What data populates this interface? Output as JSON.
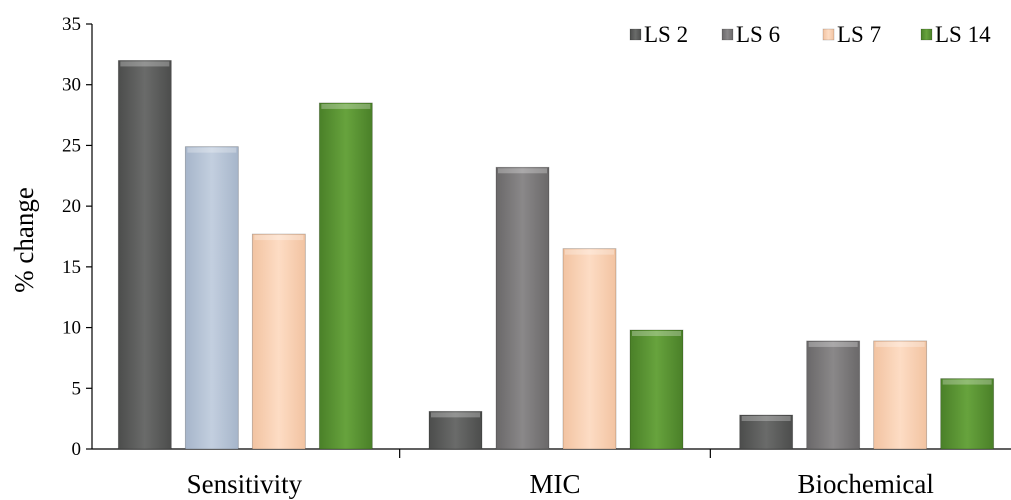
{
  "chart_data": {
    "type": "bar",
    "ylabel": "% change",
    "ylim": [
      0,
      35
    ],
    "yticks": [
      0,
      5,
      10,
      15,
      20,
      25,
      30,
      35
    ],
    "categories": [
      "Sensitivity",
      "MIC",
      "Biochemical"
    ],
    "series": [
      {
        "name": "LS 2",
        "values": [
          32,
          3.1,
          2.8
        ]
      },
      {
        "name": "LS 6",
        "values": [
          24.9,
          23.2,
          8.9
        ]
      },
      {
        "name": "LS 7",
        "values": [
          17.7,
          16.5,
          8.9
        ]
      },
      {
        "name": "LS 14",
        "values": [
          28.5,
          9.8,
          5.8
        ]
      }
    ],
    "legend_position": "top-right",
    "grid": false
  },
  "colors": {
    "LS 2": "#5f605f",
    "LS 6": "#7d7b7c",
    "LS 6 (Sensitivity)": "#b8c6d9",
    "LS 7": "#fbd2b5",
    "LS 14": "#5a9433"
  }
}
